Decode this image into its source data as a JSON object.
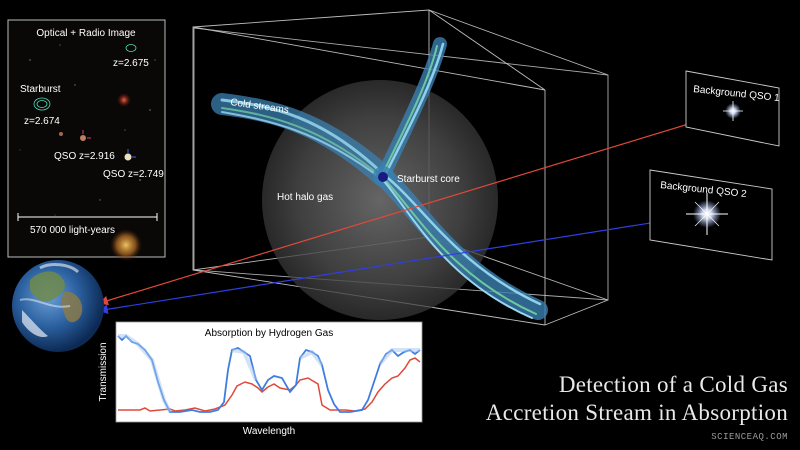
{
  "inset": {
    "title": "Optical + Radio Image",
    "labels": {
      "z_top": "z=2.675",
      "starburst": "Starburst",
      "starburst_z": "z=2.674",
      "qso1": "QSO z=2.916",
      "qso2": "QSO z=2.749"
    },
    "scale_bar": "570 000 light-years"
  },
  "diagram": {
    "cold_streams": "Cold streams",
    "hot_halo": "Hot halo gas",
    "starburst_core": "Starburst core"
  },
  "background_qsos": {
    "qso1": "Background QSO 1",
    "qso2": "Background QSO 2"
  },
  "spectrum": {
    "title": "Absorption by Hydrogen Gas",
    "xlabel": "Wavelength",
    "ylabel": "Transmission"
  },
  "title": {
    "line1": "Detection of a Cold Gas",
    "line2": "Accretion Stream in Absorption"
  },
  "watermark": "SCIENCEAQ.COM",
  "colors": {
    "red_sightline": "#e0493a",
    "blue_sightline": "#2f3fe0",
    "stream": "#5fb0d8"
  }
}
